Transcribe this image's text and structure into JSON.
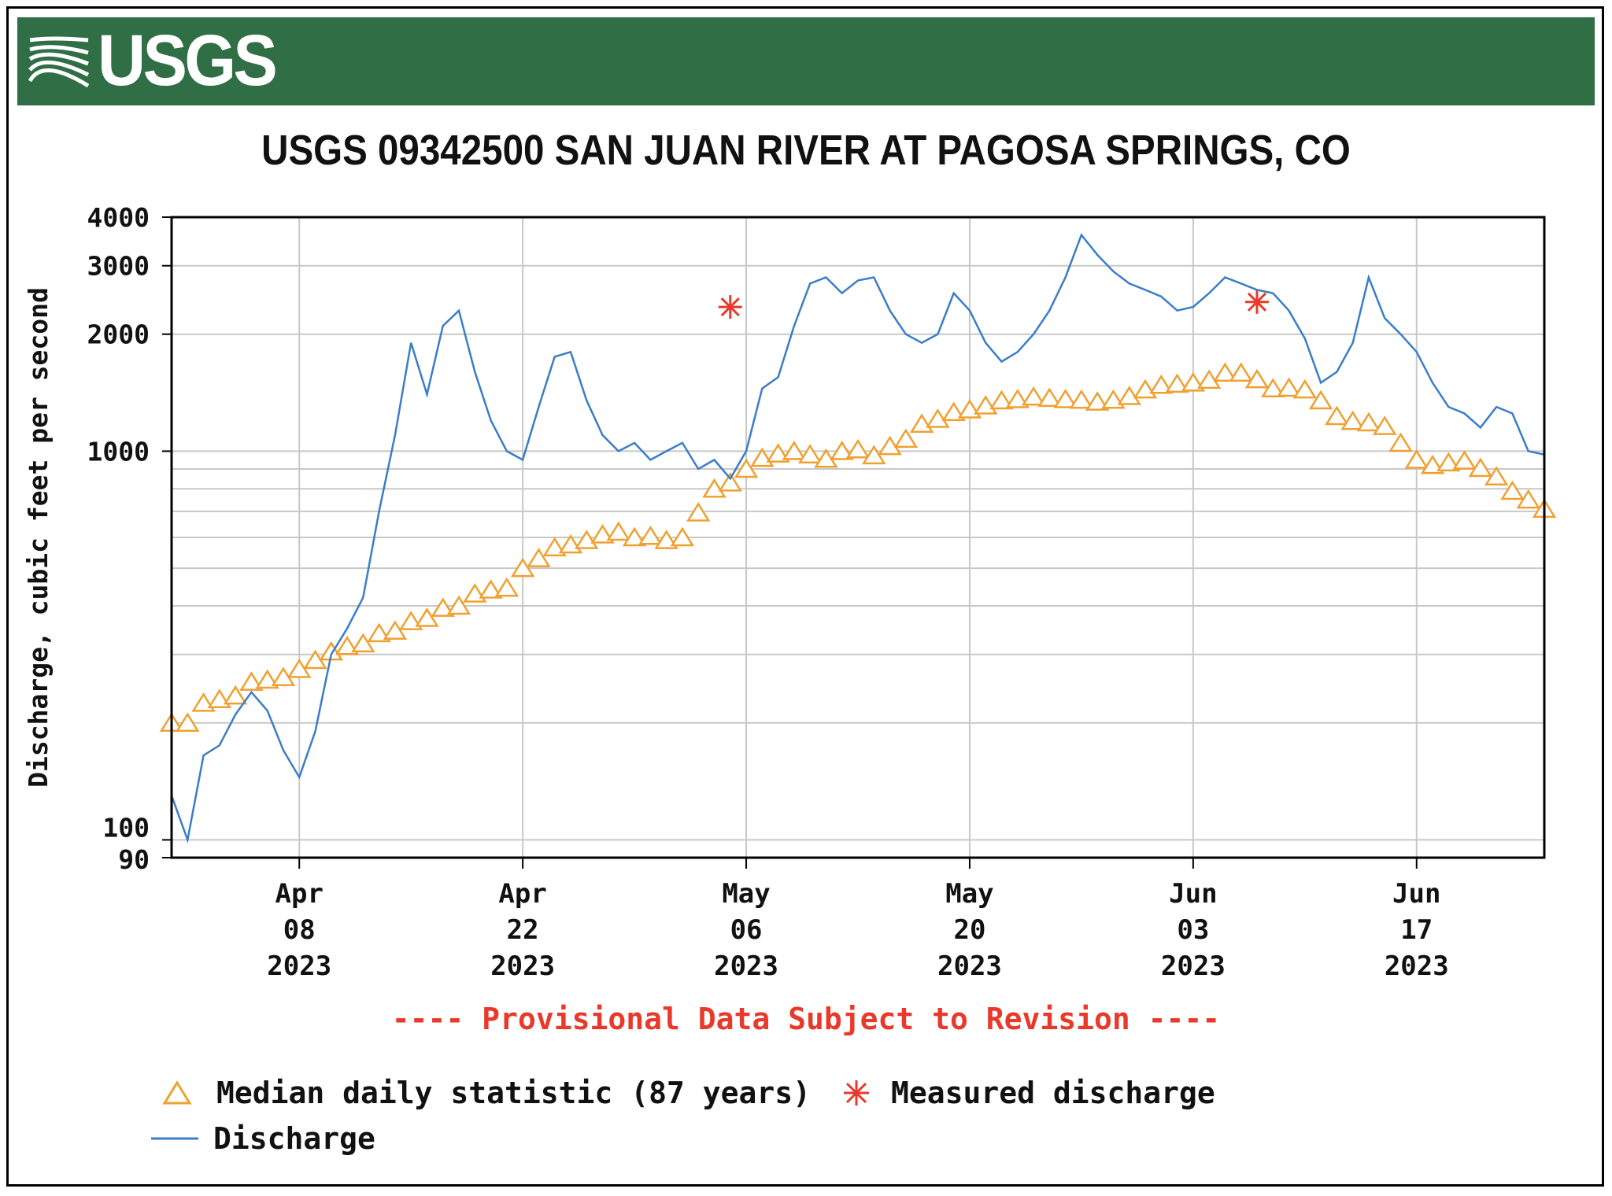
{
  "banner": {
    "logo_text": "USGS",
    "color": "#306E45"
  },
  "title": "USGS 09342500 SAN JUAN RIVER AT PAGOSA SPRINGS, CO",
  "provisional_note": "---- Provisional Data Subject to Revision ----",
  "legend": {
    "median": "Median daily statistic (87 years)",
    "measured": "Measured discharge",
    "discharge": "Discharge"
  },
  "colors": {
    "discharge": "#3A7DC9",
    "median": "#F0A030",
    "measured": "#E8392B",
    "grid": "#c8c8c8"
  },
  "chart_data": {
    "type": "line",
    "ylabel": "Discharge, cubic feet per second",
    "yscale": "log",
    "ylim": [
      90,
      4000
    ],
    "y_tick_labels": [
      "4000",
      "3000",
      "2000",
      "1000",
      "100",
      "90"
    ],
    "y_ticks": [
      4000,
      3000,
      2000,
      1000,
      100,
      90
    ],
    "y_minor_gridlines": [
      200,
      300,
      400,
      500,
      600,
      700,
      800,
      900
    ],
    "xlim": [
      "2023-03-31",
      "2023-06-25"
    ],
    "x_ticks": [
      {
        "date": "2023-04-08",
        "label": [
          "Apr",
          "08",
          "2023"
        ]
      },
      {
        "date": "2023-04-22",
        "label": [
          "Apr",
          "22",
          "2023"
        ]
      },
      {
        "date": "2023-05-06",
        "label": [
          "May",
          "06",
          "2023"
        ]
      },
      {
        "date": "2023-05-20",
        "label": [
          "May",
          "20",
          "2023"
        ]
      },
      {
        "date": "2023-06-03",
        "label": [
          "Jun",
          "03",
          "2023"
        ]
      },
      {
        "date": "2023-06-17",
        "label": [
          "Jun",
          "17",
          "2023"
        ]
      }
    ],
    "series": [
      {
        "name": "Discharge",
        "style": "line",
        "points": [
          [
            "2023-03-31",
            130
          ],
          [
            "2023-04-01",
            100
          ],
          [
            "2023-04-02",
            165
          ],
          [
            "2023-04-03",
            175
          ],
          [
            "2023-04-04",
            210
          ],
          [
            "2023-04-05",
            240
          ],
          [
            "2023-04-06",
            215
          ],
          [
            "2023-04-07",
            170
          ],
          [
            "2023-04-08",
            145
          ],
          [
            "2023-04-09",
            190
          ],
          [
            "2023-04-10",
            300
          ],
          [
            "2023-04-11",
            350
          ],
          [
            "2023-04-12",
            420
          ],
          [
            "2023-04-13",
            700
          ],
          [
            "2023-04-14",
            1100
          ],
          [
            "2023-04-15",
            1900
          ],
          [
            "2023-04-16",
            1400
          ],
          [
            "2023-04-17",
            2100
          ],
          [
            "2023-04-18",
            2300
          ],
          [
            "2023-04-19",
            1600
          ],
          [
            "2023-04-20",
            1200
          ],
          [
            "2023-04-21",
            1000
          ],
          [
            "2023-04-22",
            950
          ],
          [
            "2023-04-23",
            1300
          ],
          [
            "2023-04-24",
            1750
          ],
          [
            "2023-04-25",
            1800
          ],
          [
            "2023-04-26",
            1350
          ],
          [
            "2023-04-27",
            1100
          ],
          [
            "2023-04-28",
            1000
          ],
          [
            "2023-04-29",
            1050
          ],
          [
            "2023-04-30",
            950
          ],
          [
            "2023-05-01",
            1000
          ],
          [
            "2023-05-02",
            1050
          ],
          [
            "2023-05-03",
            900
          ],
          [
            "2023-05-04",
            950
          ],
          [
            "2023-05-05",
            850
          ],
          [
            "2023-05-06",
            1000
          ],
          [
            "2023-05-07",
            1450
          ],
          [
            "2023-05-08",
            1550
          ],
          [
            "2023-05-09",
            2100
          ],
          [
            "2023-05-10",
            2700
          ],
          [
            "2023-05-11",
            2800
          ],
          [
            "2023-05-12",
            2550
          ],
          [
            "2023-05-13",
            2750
          ],
          [
            "2023-05-14",
            2800
          ],
          [
            "2023-05-15",
            2300
          ],
          [
            "2023-05-16",
            2000
          ],
          [
            "2023-05-17",
            1900
          ],
          [
            "2023-05-18",
            2000
          ],
          [
            "2023-05-19",
            2550
          ],
          [
            "2023-05-20",
            2300
          ],
          [
            "2023-05-21",
            1900
          ],
          [
            "2023-05-22",
            1700
          ],
          [
            "2023-05-23",
            1800
          ],
          [
            "2023-05-24",
            2000
          ],
          [
            "2023-05-25",
            2300
          ],
          [
            "2023-05-26",
            2800
          ],
          [
            "2023-05-27",
            3600
          ],
          [
            "2023-05-28",
            3200
          ],
          [
            "2023-05-29",
            2900
          ],
          [
            "2023-05-30",
            2700
          ],
          [
            "2023-05-31",
            2600
          ],
          [
            "2023-06-01",
            2500
          ],
          [
            "2023-06-02",
            2300
          ],
          [
            "2023-06-03",
            2350
          ],
          [
            "2023-06-04",
            2550
          ],
          [
            "2023-06-05",
            2800
          ],
          [
            "2023-06-06",
            2700
          ],
          [
            "2023-06-07",
            2600
          ],
          [
            "2023-06-08",
            2550
          ],
          [
            "2023-06-09",
            2300
          ],
          [
            "2023-06-10",
            1950
          ],
          [
            "2023-06-11",
            1500
          ],
          [
            "2023-06-12",
            1600
          ],
          [
            "2023-06-13",
            1900
          ],
          [
            "2023-06-14",
            2800
          ],
          [
            "2023-06-15",
            2200
          ],
          [
            "2023-06-16",
            2000
          ],
          [
            "2023-06-17",
            1800
          ],
          [
            "2023-06-18",
            1500
          ],
          [
            "2023-06-19",
            1300
          ],
          [
            "2023-06-20",
            1250
          ],
          [
            "2023-06-21",
            1150
          ],
          [
            "2023-06-22",
            1300
          ],
          [
            "2023-06-23",
            1250
          ],
          [
            "2023-06-24",
            1000
          ],
          [
            "2023-06-25",
            980
          ]
        ]
      },
      {
        "name": "Median daily statistic (87 years)",
        "style": "triangle-markers",
        "points": [
          [
            "2023-03-31",
            200
          ],
          [
            "2023-04-01",
            200
          ],
          [
            "2023-04-02",
            225
          ],
          [
            "2023-04-03",
            230
          ],
          [
            "2023-04-04",
            235
          ],
          [
            "2023-04-05",
            255
          ],
          [
            "2023-04-06",
            258
          ],
          [
            "2023-04-07",
            262
          ],
          [
            "2023-04-08",
            275
          ],
          [
            "2023-04-09",
            290
          ],
          [
            "2023-04-10",
            305
          ],
          [
            "2023-04-11",
            315
          ],
          [
            "2023-04-12",
            320
          ],
          [
            "2023-04-13",
            340
          ],
          [
            "2023-04-14",
            345
          ],
          [
            "2023-04-15",
            365
          ],
          [
            "2023-04-16",
            372
          ],
          [
            "2023-04-17",
            395
          ],
          [
            "2023-04-18",
            400
          ],
          [
            "2023-04-19",
            430
          ],
          [
            "2023-04-20",
            440
          ],
          [
            "2023-04-21",
            445
          ],
          [
            "2023-04-22",
            500
          ],
          [
            "2023-04-23",
            530
          ],
          [
            "2023-04-24",
            565
          ],
          [
            "2023-04-25",
            575
          ],
          [
            "2023-04-26",
            590
          ],
          [
            "2023-04-27",
            610
          ],
          [
            "2023-04-28",
            620
          ],
          [
            "2023-04-29",
            600
          ],
          [
            "2023-04-30",
            605
          ],
          [
            "2023-05-01",
            590
          ],
          [
            "2023-05-02",
            600
          ],
          [
            "2023-05-03",
            695
          ],
          [
            "2023-05-04",
            800
          ],
          [
            "2023-05-05",
            830
          ],
          [
            "2023-05-06",
            900
          ],
          [
            "2023-05-07",
            960
          ],
          [
            "2023-05-08",
            985
          ],
          [
            "2023-05-09",
            1000
          ],
          [
            "2023-05-10",
            980
          ],
          [
            "2023-05-11",
            955
          ],
          [
            "2023-05-12",
            1000
          ],
          [
            "2023-05-13",
            1010
          ],
          [
            "2023-05-14",
            975
          ],
          [
            "2023-05-15",
            1030
          ],
          [
            "2023-05-16",
            1075
          ],
          [
            "2023-05-17",
            1175
          ],
          [
            "2023-05-18",
            1210
          ],
          [
            "2023-05-19",
            1260
          ],
          [
            "2023-05-20",
            1280
          ],
          [
            "2023-05-21",
            1310
          ],
          [
            "2023-05-22",
            1350
          ],
          [
            "2023-05-23",
            1360
          ],
          [
            "2023-05-24",
            1380
          ],
          [
            "2023-05-25",
            1370
          ],
          [
            "2023-05-26",
            1360
          ],
          [
            "2023-05-27",
            1355
          ],
          [
            "2023-05-28",
            1340
          ],
          [
            "2023-05-29",
            1355
          ],
          [
            "2023-05-30",
            1385
          ],
          [
            "2023-05-31",
            1440
          ],
          [
            "2023-06-01",
            1480
          ],
          [
            "2023-06-02",
            1490
          ],
          [
            "2023-06-03",
            1500
          ],
          [
            "2023-06-04",
            1525
          ],
          [
            "2023-06-05",
            1590
          ],
          [
            "2023-06-06",
            1590
          ],
          [
            "2023-06-07",
            1530
          ],
          [
            "2023-06-08",
            1450
          ],
          [
            "2023-06-09",
            1455
          ],
          [
            "2023-06-10",
            1440
          ],
          [
            "2023-06-11",
            1350
          ],
          [
            "2023-06-12",
            1230
          ],
          [
            "2023-06-13",
            1195
          ],
          [
            "2023-06-14",
            1185
          ],
          [
            "2023-06-15",
            1160
          ],
          [
            "2023-06-16",
            1050
          ],
          [
            "2023-06-17",
            950
          ],
          [
            "2023-06-18",
            920
          ],
          [
            "2023-06-19",
            935
          ],
          [
            "2023-06-20",
            945
          ],
          [
            "2023-06-21",
            905
          ],
          [
            "2023-06-22",
            860
          ],
          [
            "2023-06-23",
            790
          ],
          [
            "2023-06-24",
            750
          ],
          [
            "2023-06-25",
            710
          ]
        ]
      },
      {
        "name": "Measured discharge",
        "style": "asterisk-markers",
        "points": [
          [
            "2023-05-05",
            2350
          ],
          [
            "2023-06-07",
            2420
          ]
        ]
      }
    ]
  }
}
